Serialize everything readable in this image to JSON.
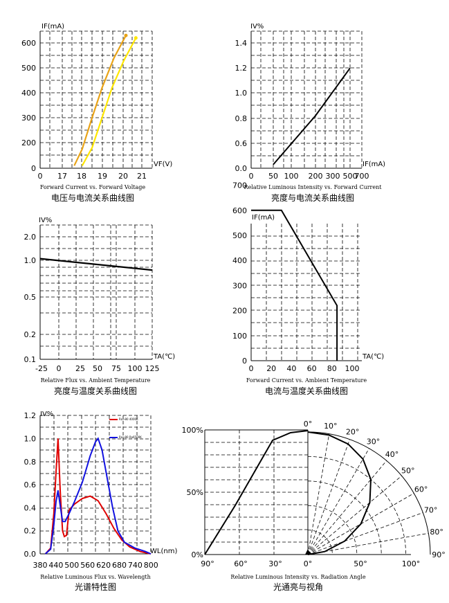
{
  "charts": [
    {
      "type": "line",
      "ylabel": "IF(mA)",
      "xlabel": "VF(V)",
      "xticks": [
        "0",
        "17",
        "18",
        "19",
        "20",
        "21"
      ],
      "yticks": [
        "0",
        "200",
        "300",
        "400",
        "500",
        "600"
      ],
      "caption_en": "Forward Current vs. Forward Voltage",
      "caption_zh": "电压与电流关系曲线图",
      "series": [
        {
          "color": "#E8A317",
          "points": [
            [
              17.6,
              20
            ],
            [
              18.0,
              150
            ],
            [
              18.5,
              300
            ],
            [
              19.0,
              420
            ],
            [
              19.6,
              540
            ],
            [
              20.2,
              630
            ]
          ]
        },
        {
          "color": "#FFE600",
          "points": [
            [
              18.0,
              20
            ],
            [
              18.5,
              160
            ],
            [
              19.0,
              300
            ],
            [
              19.5,
              420
            ],
            [
              20.1,
              530
            ],
            [
              20.7,
              620
            ]
          ]
        }
      ]
    },
    {
      "type": "line",
      "ylabel": "IV%",
      "xlabel": "IF(mA)",
      "xticks": [
        "0",
        "50",
        "100",
        "200",
        "300",
        "500",
        "700"
      ],
      "yticks": [
        "0.0",
        "0.6",
        "0.8",
        "1.0",
        "1.2",
        "1.4"
      ],
      "caption_en": "Relative Luminous Intensity vs. Forward Current",
      "caption_zh": "亮度与电流关系曲线图",
      "series": [
        {
          "color": "#000000",
          "points": [
            [
              50,
              0.09
            ],
            [
              300,
              0.82
            ],
            [
              700,
              1.2
            ]
          ]
        }
      ]
    },
    {
      "type": "line",
      "ylabel": "IV%",
      "xlabel": "TA(℃)",
      "xticks": [
        "-25",
        "0",
        "25",
        "50",
        "75",
        "100",
        "125"
      ],
      "yticks": [
        "0.1",
        "0.2",
        "0.5",
        "1.0",
        "2.0"
      ],
      "caption_en": "Relative Flux vs. Ambient Temperature",
      "caption_zh": "亮度与温度关系曲线图",
      "series": [
        {
          "color": "#000000",
          "points": [
            [
              -25,
              1.05
            ],
            [
              125,
              0.75
            ]
          ]
        }
      ]
    },
    {
      "type": "line",
      "ylabel": "IF(mA)",
      "xlabel": "TA(℃)",
      "xticks": [
        "0",
        "20",
        "40",
        "60",
        "80",
        "100"
      ],
      "yticks": [
        "0",
        "100",
        "200",
        "300",
        "400",
        "500",
        "600",
        "700"
      ],
      "caption_en": "Forward Current vs. Ambient Temperature",
      "caption_zh": "电流与温度关系曲线图",
      "series": [
        {
          "color": "#000000",
          "points": [
            [
              0,
              600
            ],
            [
              30,
              600
            ],
            [
              85,
              220
            ],
            [
              85,
              0
            ]
          ]
        }
      ]
    },
    {
      "type": "line",
      "ylabel": "IV%",
      "xlabel": "WL(nm)",
      "xticks": [
        "380",
        "440",
        "500",
        "560",
        "620",
        "680",
        "740",
        "800"
      ],
      "yticks": [
        "0.0",
        "0.2",
        "0.4",
        "0.6",
        "0.8",
        "1.0",
        "1.2"
      ],
      "caption_en": "Relative Luminous Flux vs. Wavelength",
      "caption_zh": "光谱特性图",
      "legend": [
        "Ra>80 4000K",
        "Ra>80 Ra6500K"
      ],
      "series": [
        {
          "color": "#E00000",
          "points": [
            [
              400,
              0
            ],
            [
              420,
              0.05
            ],
            [
              432,
              0.35
            ],
            [
              440,
              0.7
            ],
            [
              448,
              1.0
            ],
            [
              456,
              0.55
            ],
            [
              465,
              0.2
            ],
            [
              472,
              0.15
            ],
            [
              480,
              0.16
            ],
            [
              490,
              0.38
            ],
            [
              510,
              0.43
            ],
            [
              540,
              0.48
            ],
            [
              570,
              0.5
            ],
            [
              600,
              0.46
            ],
            [
              630,
              0.35
            ],
            [
              660,
              0.22
            ],
            [
              690,
              0.12
            ],
            [
              720,
              0.06
            ],
            [
              760,
              0.02
            ],
            [
              800,
              0
            ]
          ]
        },
        {
          "color": "#1010E0",
          "points": [
            [
              400,
              0
            ],
            [
              420,
              0.04
            ],
            [
              432,
              0.25
            ],
            [
              440,
              0.45
            ],
            [
              448,
              0.55
            ],
            [
              456,
              0.42
            ],
            [
              465,
              0.28
            ],
            [
              475,
              0.28
            ],
            [
              490,
              0.35
            ],
            [
              510,
              0.45
            ],
            [
              540,
              0.62
            ],
            [
              570,
              0.85
            ],
            [
              590,
              0.97
            ],
            [
              600,
              1.0
            ],
            [
              615,
              0.9
            ],
            [
              635,
              0.65
            ],
            [
              655,
              0.4
            ],
            [
              675,
              0.2
            ],
            [
              700,
              0.1
            ],
            [
              740,
              0.05
            ],
            [
              780,
              0.02
            ],
            [
              800,
              0
            ]
          ]
        }
      ]
    },
    {
      "type": "polar",
      "left_ticks": [
        "100%",
        "50%",
        "0%"
      ],
      "bottom_ticks": [
        "90°",
        "60°",
        "30°",
        "0°",
        "50°",
        "100°"
      ],
      "angle_ticks": [
        "0°",
        "10°",
        "20°",
        "30°",
        "40°",
        "50°",
        "60°",
        "70°",
        "80°",
        "90°"
      ],
      "caption_en": "Relative Luminous Intensity vs. Radiation Angle",
      "caption_zh": "光通亮与视角"
    }
  ]
}
